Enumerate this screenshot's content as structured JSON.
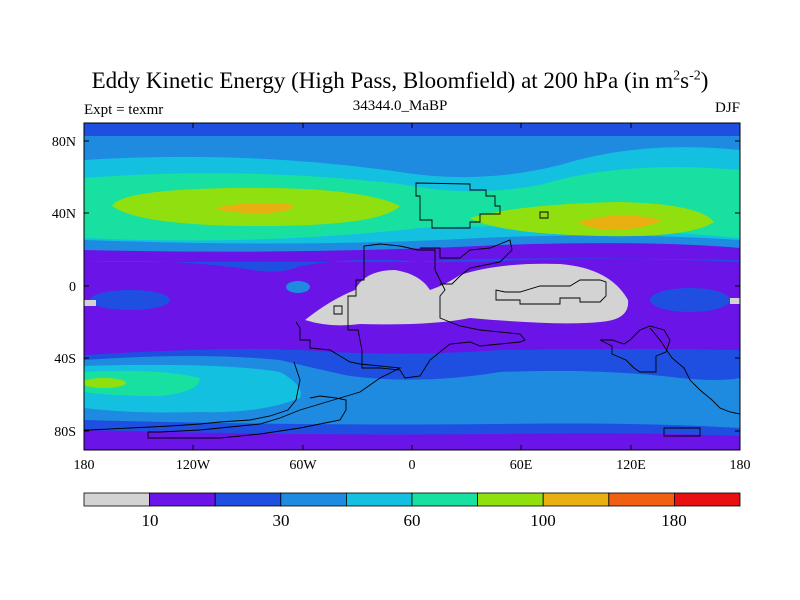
{
  "title": {
    "main": "Eddy Kinetic Energy (High Pass, Bloomfield) at 200 hPa (in m",
    "sup1": "2",
    "mid": "s",
    "sup2": "-2",
    "close": ")"
  },
  "left_label": "Expt = texmr",
  "center_label": "34344.0_MaBP",
  "right_label": "DJF",
  "lat_labels": [
    "80N",
    "40N",
    "0",
    "40S",
    "80S"
  ],
  "lon_labels": [
    "180",
    "120W",
    "60W",
    "0",
    "60E",
    "120E",
    "180"
  ],
  "colorbar": {
    "colors": [
      "#d3d3d3",
      "#6a14e8",
      "#1f4fe0",
      "#1e8ae0",
      "#13c0e0",
      "#18e0a0",
      "#90e010",
      "#e8b010",
      "#f06010",
      "#e81010"
    ],
    "labels": [
      "10",
      "30",
      "60",
      "100",
      "180"
    ]
  },
  "palette": {
    "low": "#d3d3d3",
    "purple": "#6a14e8",
    "blue": "#1f4fe0",
    "lightblue": "#1e8ae0",
    "cyan": "#13c0e0",
    "teal": "#18e0a0",
    "green": "#90e010",
    "orange": "#e8b010"
  }
}
